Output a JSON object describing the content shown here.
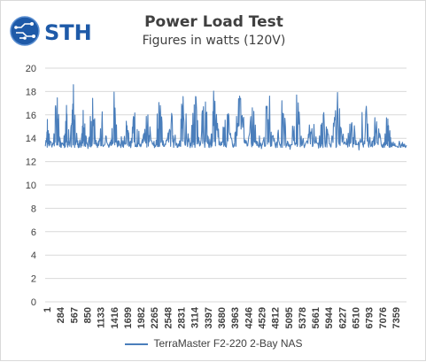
{
  "brand": {
    "logo_text": "STH"
  },
  "chart_data": {
    "type": "line",
    "title": "Power Load Test",
    "subtitle": "Figures in watts (120V)",
    "xlabel": "",
    "ylabel": "",
    "ylim": [
      0,
      20
    ],
    "yticks": [
      0,
      2,
      4,
      6,
      8,
      10,
      12,
      14,
      16,
      18,
      20
    ],
    "xlim": [
      1,
      7600
    ],
    "xticks": [
      "1",
      "284",
      "567",
      "850",
      "1133",
      "1416",
      "1699",
      "1982",
      "2265",
      "2548",
      "2831",
      "3114",
      "3397",
      "3680",
      "3963",
      "4246",
      "4529",
      "4812",
      "5095",
      "5378",
      "5661",
      "5944",
      "6227",
      "6510",
      "6793",
      "7076",
      "7359"
    ],
    "grid": true,
    "legend_position": "bottom",
    "series": [
      {
        "name": "TerraMaster F2-220 2-Bay NAS",
        "color": "#4a7ebb",
        "baseline": 13.2,
        "peak_max": 18.9,
        "approx_points": [
          [
            1,
            13.4
          ],
          [
            60,
            16.0
          ],
          [
            150,
            13.1
          ],
          [
            250,
            18.3
          ],
          [
            330,
            13.0
          ],
          [
            450,
            17.2
          ],
          [
            520,
            13.3
          ],
          [
            600,
            18.5
          ],
          [
            700,
            13.2
          ],
          [
            800,
            16.2
          ],
          [
            900,
            13.1
          ],
          [
            1000,
            18.4
          ],
          [
            1100,
            13.1
          ],
          [
            1200,
            16.1
          ],
          [
            1350,
            13.0
          ],
          [
            1450,
            18.2
          ],
          [
            1550,
            13.1
          ],
          [
            1700,
            16.0
          ],
          [
            1800,
            13.2
          ],
          [
            1900,
            18.3
          ],
          [
            2000,
            13.0
          ],
          [
            2150,
            16.1
          ],
          [
            2300,
            13.2
          ],
          [
            2400,
            18.2
          ],
          [
            2500,
            13.1
          ],
          [
            2650,
            16.2
          ],
          [
            2800,
            13.0
          ],
          [
            2900,
            18.1
          ],
          [
            3050,
            13.2
          ],
          [
            3150,
            18.5
          ],
          [
            3250,
            13.1
          ],
          [
            3350,
            18.9
          ],
          [
            3450,
            13.2
          ],
          [
            3550,
            18.3
          ],
          [
            3700,
            13.0
          ],
          [
            3800,
            18.1
          ],
          [
            3950,
            13.2
          ],
          [
            4100,
            18.3
          ],
          [
            4250,
            13.1
          ],
          [
            4400,
            18.2
          ],
          [
            4550,
            13.1
          ],
          [
            4700,
            18.4
          ],
          [
            4850,
            13.2
          ],
          [
            5000,
            18.1
          ],
          [
            5150,
            13.0
          ],
          [
            5300,
            18.3
          ],
          [
            5450,
            13.2
          ],
          [
            5600,
            16.1
          ],
          [
            5750,
            13.1
          ],
          [
            5850,
            18.5
          ],
          [
            6000,
            13.1
          ],
          [
            6150,
            18.2
          ],
          [
            6300,
            13.2
          ],
          [
            6450,
            16.2
          ],
          [
            6600,
            13.0
          ],
          [
            6700,
            18.2
          ],
          [
            6850,
            13.3
          ],
          [
            6950,
            16.1
          ],
          [
            7100,
            13.1
          ],
          [
            7200,
            16.2
          ],
          [
            7300,
            13.5
          ],
          [
            7450,
            13.2
          ],
          [
            7600,
            13.4
          ]
        ]
      }
    ]
  },
  "colors": {
    "line": "#4a7ebb",
    "grid": "#d9d9d9",
    "text": "#404040",
    "logo": "#1e5aa8"
  }
}
